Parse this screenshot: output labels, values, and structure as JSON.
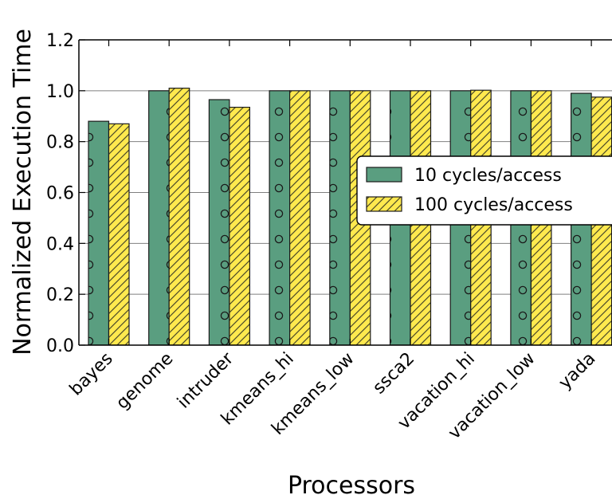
{
  "chart_data": {
    "type": "bar",
    "title": "",
    "xlabel": "Processors",
    "ylabel": "Normalized Execution Time",
    "ylim": [
      0,
      1.2
    ],
    "yticks": [
      "0.0",
      "0.2",
      "0.4",
      "0.6",
      "0.8",
      "1.0",
      "1.2"
    ],
    "grid": "horizontal",
    "legend_position": "right",
    "categories": [
      "bayes",
      "genome",
      "intruder",
      "kmeans_hi",
      "kmeans_low",
      "ssca2",
      "vacation_hi",
      "vacation_low",
      "yada"
    ],
    "series": [
      {
        "name": "10 cycles/access",
        "color": "#5a9e80",
        "pattern": "circles",
        "values": [
          0.88,
          1.0,
          0.965,
          1.0,
          1.0,
          1.0,
          1.0,
          1.0,
          0.99
        ]
      },
      {
        "name": "100 cycles/access",
        "color": "#ffe94e",
        "pattern": "diagonal-hatch",
        "values": [
          0.87,
          1.01,
          0.935,
          1.0,
          1.0,
          1.0,
          1.002,
          1.0,
          0.975
        ]
      }
    ]
  }
}
